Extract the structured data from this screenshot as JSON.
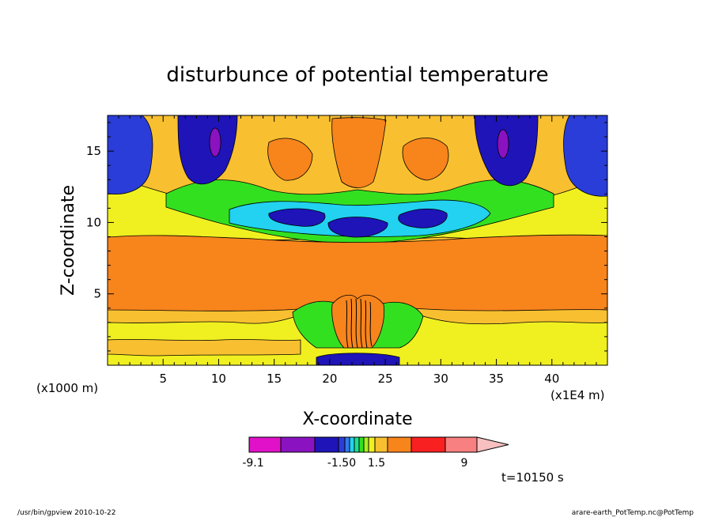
{
  "chart_data": {
    "type": "heatmap",
    "title": "disturbunce of potential temperature",
    "xlabel": "X-coordinate",
    "ylabel": "Z-coordinate",
    "x_unit_left": "(x1000 m)",
    "x_unit_right": "(x1E4 m)",
    "xlim": [
      0,
      45
    ],
    "ylim": [
      0,
      17.5
    ],
    "x_ticks": [
      "5",
      "10",
      "15",
      "20",
      "25",
      "30",
      "35",
      "40"
    ],
    "y_ticks": [
      "5",
      "10",
      "15"
    ],
    "colorbar": {
      "labels": [
        "-9.1",
        "-1.50",
        "1.5",
        "9"
      ],
      "colors": [
        "#e011c8",
        "#8a12c0",
        "#1e14b8",
        "#2a3dd8",
        "#2f7cf0",
        "#22d2f0",
        "#1ee08a",
        "#33e020",
        "#a8f020",
        "#f0f020",
        "#f8c030",
        "#f8841c",
        "#f82020",
        "#f88080",
        "#f8c0c0"
      ]
    },
    "time_label": "t=10150 s",
    "grid": false,
    "legend": "bottom"
  },
  "footer": {
    "left": "/usr/bin/gpview  2010-10-22",
    "right": "arare-earth_PotTemp.nc@PotTemp"
  }
}
